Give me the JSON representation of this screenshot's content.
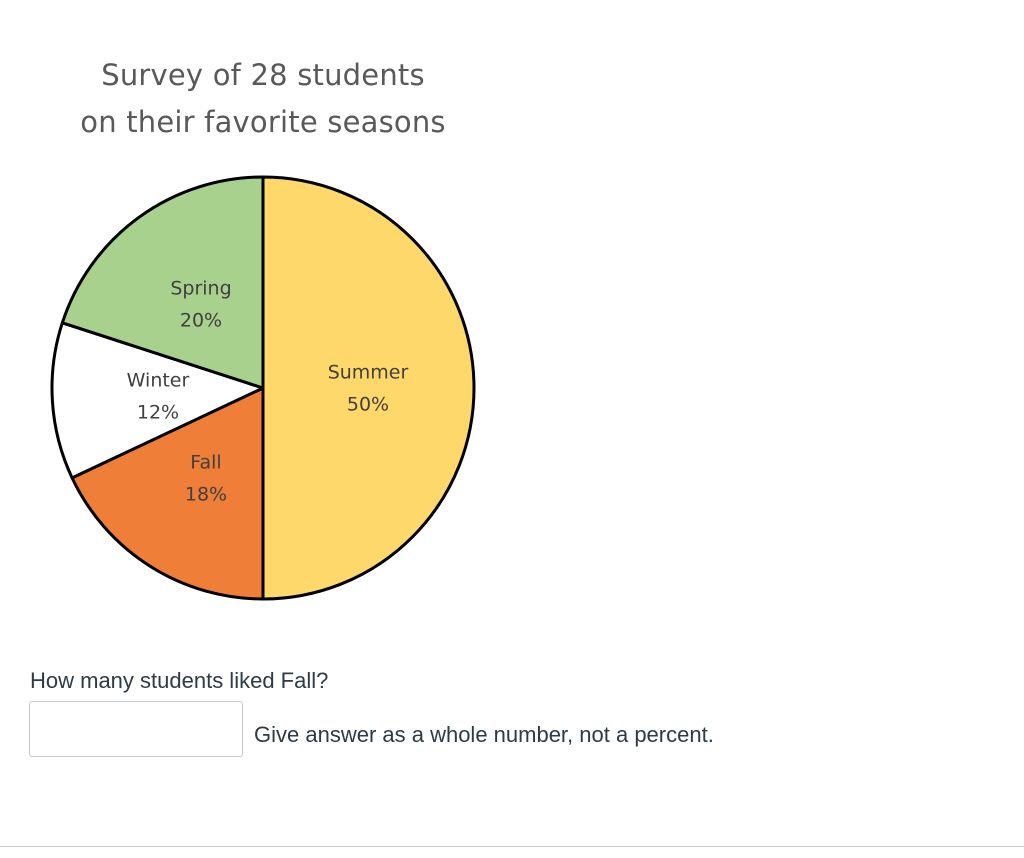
{
  "chart_data": {
    "type": "pie",
    "title_lines": [
      "Survey of 28 students",
      "on their favorite seasons"
    ],
    "slices": [
      {
        "label": "Summer",
        "value": 50,
        "value_label": "50%",
        "color": "#FFD86B"
      },
      {
        "label": "Fall",
        "value": 18,
        "value_label": "18%",
        "color": "#EE7E38"
      },
      {
        "label": "Winter",
        "value": 12,
        "value_label": "12%",
        "color": "#FFFFFF"
      },
      {
        "label": "Spring",
        "value": 20,
        "value_label": "20%",
        "color": "#A9D18E"
      }
    ],
    "stroke_color": "#000000"
  },
  "question": {
    "text": "How many students liked Fall?",
    "answer_value": "",
    "hint": "Give answer as a whole number, not a percent."
  }
}
